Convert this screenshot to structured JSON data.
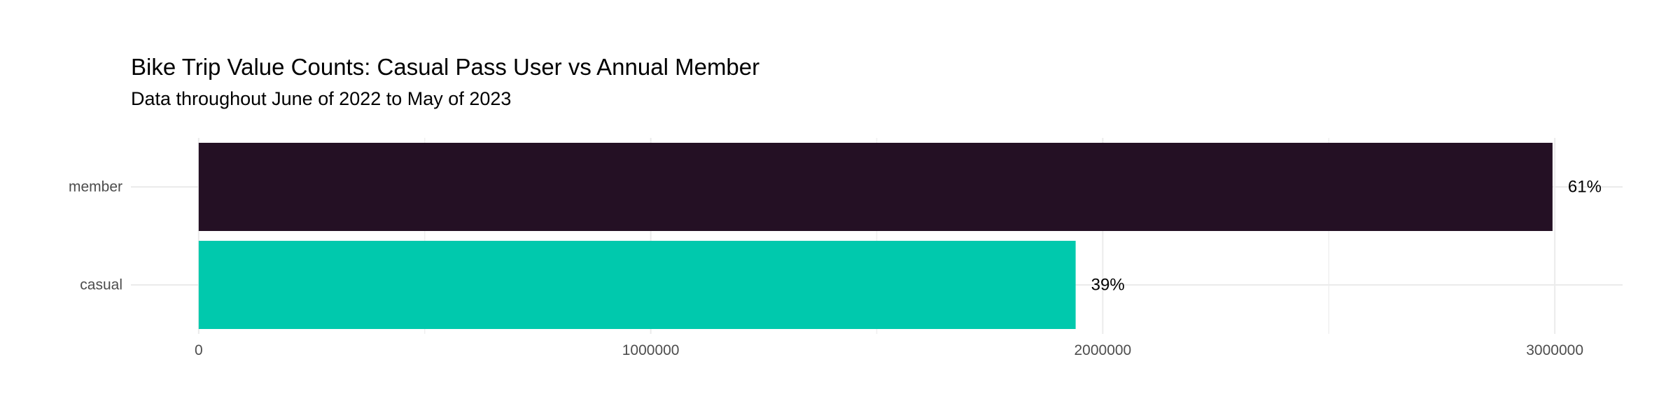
{
  "chart_data": {
    "type": "bar",
    "orientation": "horizontal",
    "title": "Bike Trip Value Counts: Casual Pass User vs Annual Member",
    "subtitle": "Data throughout June of 2022 to May of 2023",
    "xlabel": "",
    "ylabel": "",
    "categories": [
      "member",
      "casual"
    ],
    "values": [
      2995000,
      1940000
    ],
    "data_labels": [
      "61%",
      "39%"
    ],
    "colors": [
      "#241024",
      "#00c9ad"
    ],
    "xlim": [
      -150000,
      3150000
    ],
    "x_ticks": [
      0,
      1000000,
      2000000,
      3000000
    ],
    "x_tick_labels": [
      "0",
      "1000000",
      "2000000",
      "3000000"
    ],
    "grid": true,
    "legend": "none"
  }
}
